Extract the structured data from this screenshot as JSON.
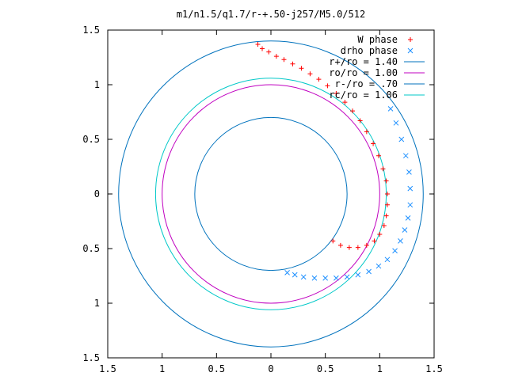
{
  "chart_data": {
    "type": "scatter",
    "title": "m1/n1.5/q1.7/r-+.50-j257/M5.0/512",
    "xlabel": "",
    "ylabel": "",
    "xlim": [
      -1.5,
      1.5
    ],
    "ylim": [
      -1.5,
      1.5
    ],
    "x_tick_values": [
      -1.5,
      -1,
      -0.5,
      0,
      0.5,
      1,
      1.5
    ],
    "y_tick_values": [
      -1.5,
      -1,
      -0.5,
      0,
      0.5,
      1,
      1.5
    ],
    "x_tick_labels": [
      "1.5",
      "1",
      "0.5",
      "0",
      "0.5",
      "1",
      "1.5"
    ],
    "y_tick_labels": [
      "1.5",
      "1",
      "0.5",
      "0",
      "0.5",
      "1",
      "1.5"
    ],
    "grid": false,
    "legend_position": "top-right",
    "points": [
      {
        "name": "W phase",
        "marker": "+",
        "color": "#ff0000",
        "x": [
          -0.12,
          -0.08,
          -0.02,
          0.05,
          0.12,
          0.2,
          0.28,
          0.36,
          0.44,
          0.52,
          0.6,
          0.68,
          0.75,
          0.82,
          0.88,
          0.94,
          0.99,
          1.03,
          1.06,
          1.07,
          1.07,
          1.06,
          1.04,
          1.0,
          0.95,
          0.88,
          0.8,
          0.72,
          0.64,
          0.57
        ],
        "y": [
          1.37,
          1.33,
          1.3,
          1.26,
          1.23,
          1.19,
          1.15,
          1.1,
          1.05,
          0.99,
          0.92,
          0.84,
          0.76,
          0.67,
          0.57,
          0.46,
          0.35,
          0.23,
          0.12,
          0.0,
          -0.1,
          -0.2,
          -0.29,
          -0.37,
          -0.43,
          -0.47,
          -0.49,
          -0.49,
          -0.47,
          -0.43
        ]
      },
      {
        "name": "drho phase",
        "marker": "x",
        "color": "#1e90ff",
        "x": [
          1.1,
          1.15,
          1.2,
          1.24,
          1.27,
          1.28,
          1.28,
          1.26,
          1.23,
          1.19,
          1.14,
          1.07,
          0.99,
          0.9,
          0.8,
          0.7,
          0.6,
          0.5,
          0.4,
          0.3,
          0.22,
          0.15
        ],
        "y": [
          0.78,
          0.65,
          0.5,
          0.35,
          0.2,
          0.05,
          -0.1,
          -0.22,
          -0.33,
          -0.43,
          -0.52,
          -0.6,
          -0.66,
          -0.71,
          -0.74,
          -0.76,
          -0.77,
          -0.77,
          -0.77,
          -0.76,
          -0.74,
          -0.72
        ]
      }
    ],
    "circles": [
      {
        "name": "r+/ro = 1.40",
        "radius": 1.4,
        "color": "#0072bd"
      },
      {
        "name": "ro/ro = 1.00",
        "radius": 1.0,
        "color": "#c000c0"
      },
      {
        "name": "r-/ro = .70",
        "radius": 0.7,
        "color": "#0072bd"
      },
      {
        "name": "rc/ro = 1.06",
        "radius": 1.06,
        "color": "#00c8c8"
      }
    ]
  }
}
